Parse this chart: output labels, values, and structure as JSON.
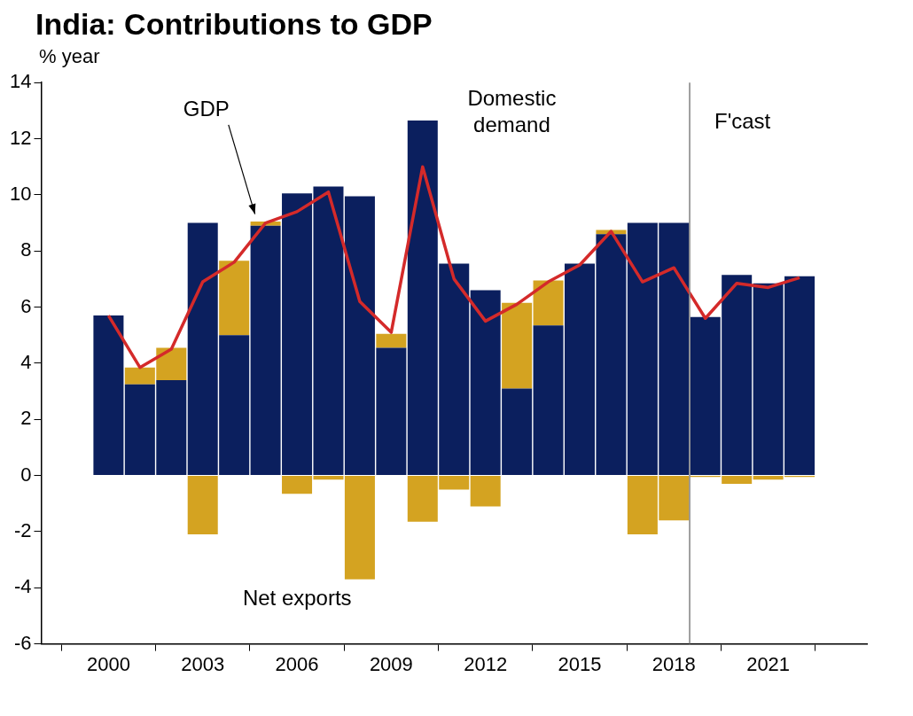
{
  "chart_data": {
    "type": "bar",
    "title": "India: Contributions to GDP",
    "ylabel": "% year",
    "stacked": true,
    "x": [
      2000,
      2001,
      2002,
      2003,
      2004,
      2005,
      2006,
      2007,
      2008,
      2009,
      2010,
      2011,
      2012,
      2013,
      2014,
      2015,
      2016,
      2017,
      2018,
      2019,
      2020,
      2021,
      2022
    ],
    "xlim": [
      1999.5,
      2022.5
    ],
    "xticks": [
      2000,
      2003,
      2006,
      2009,
      2012,
      2015,
      2018,
      2021
    ],
    "ylim": [
      -6,
      14
    ],
    "yticks": [
      -6,
      -4,
      -2,
      0,
      2,
      4,
      6,
      8,
      10,
      12,
      14
    ],
    "grid": false,
    "legend": false,
    "series": [
      {
        "name": "Domestic demand",
        "color": "#0b1f5e",
        "values": [
          5.7,
          3.25,
          3.4,
          9.0,
          5.0,
          8.9,
          10.05,
          10.3,
          9.95,
          4.55,
          12.65,
          7.55,
          6.6,
          3.1,
          5.35,
          7.55,
          8.6,
          9.0,
          9.0,
          5.65,
          7.15,
          6.85,
          7.1
        ]
      },
      {
        "name": "Net exports",
        "color": "#d4a321",
        "values": [
          0,
          0.6,
          1.15,
          -2.1,
          2.65,
          0.15,
          -0.65,
          -0.15,
          -3.7,
          0.5,
          -1.65,
          -0.5,
          -1.1,
          3.05,
          1.6,
          0,
          0.15,
          -2.1,
          -1.6,
          -0.05,
          -0.3,
          -0.15,
          -0.05
        ]
      },
      {
        "name": "GDP",
        "type": "line",
        "color": "#d42a2a",
        "values": [
          5.7,
          3.85,
          4.5,
          6.9,
          7.6,
          9.0,
          9.4,
          10.1,
          6.2,
          5.1,
          11.0,
          7.0,
          5.5,
          6.1,
          6.9,
          7.5,
          8.7,
          6.9,
          7.4,
          5.6,
          6.85,
          6.7,
          7.05
        ]
      }
    ],
    "ref_lines": [
      {
        "axis": "x",
        "value": 2018.5,
        "label": "F'cast",
        "color": "#808080"
      }
    ]
  }
}
